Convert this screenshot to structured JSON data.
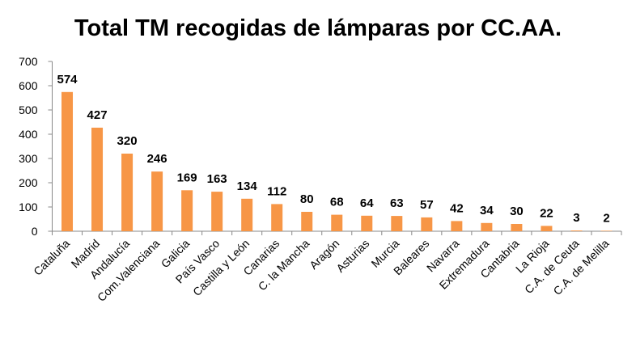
{
  "chart_data": {
    "type": "bar",
    "title": "Total TM recogidas de lámparas por CC.AA.",
    "categories": [
      "Cataluña",
      "Madrid",
      "Andalucía",
      "Com.Valenciana",
      "Galicia",
      "País Vasco",
      "Castilla y León",
      "Canarias",
      "C. la Mancha",
      "Aragón",
      "Asturias",
      "Murcia",
      "Baleares",
      "Navarra",
      "Extremadura",
      "Cantabria",
      "La Rioja",
      "C.A. de Ceuta",
      "C.A. de Melilla"
    ],
    "values": [
      574,
      427,
      320,
      246,
      169,
      163,
      134,
      112,
      80,
      68,
      64,
      63,
      57,
      42,
      34,
      30,
      22,
      3,
      2
    ],
    "color": "#f79646",
    "ylim": [
      0,
      700
    ],
    "yticks": [
      0,
      100,
      200,
      300,
      400,
      500,
      600,
      700
    ],
    "grid": false
  }
}
